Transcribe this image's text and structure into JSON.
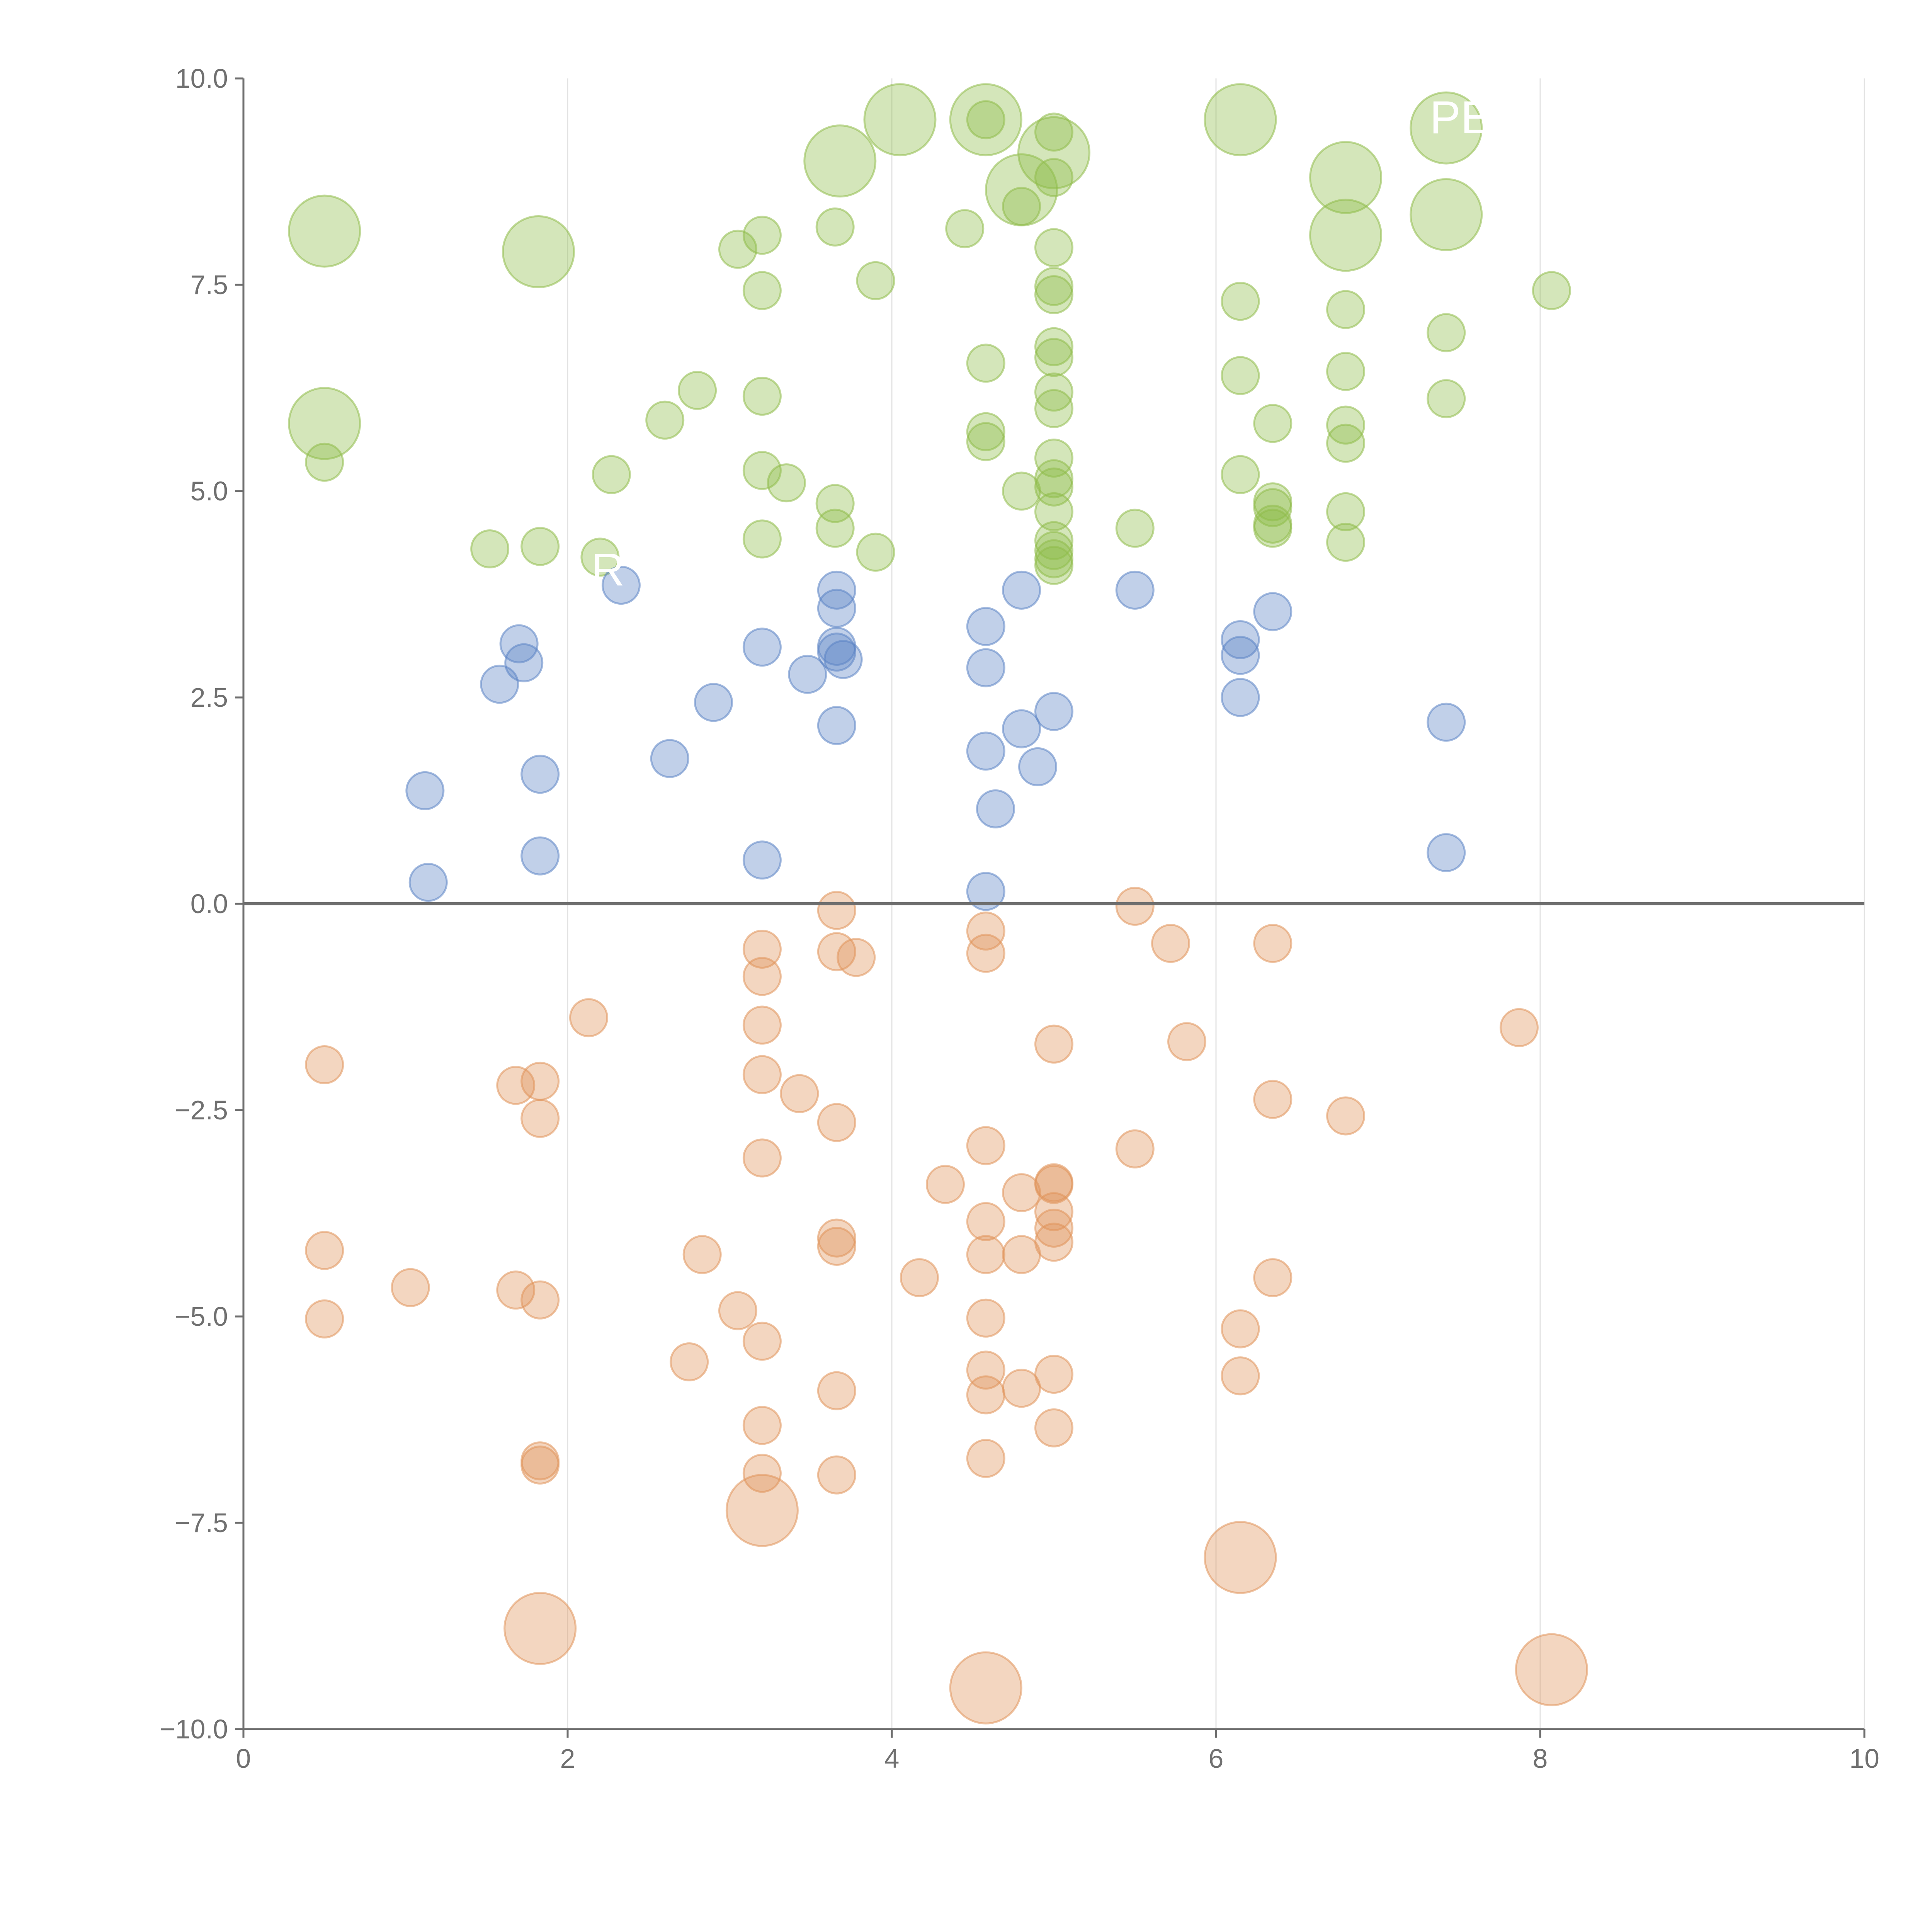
{
  "chart_data": {
    "type": "scatter",
    "xlim": [
      0,
      10
    ],
    "ylim": [
      -10,
      10
    ],
    "x_ticks": [
      0,
      2,
      4,
      6,
      8,
      10
    ],
    "x_tick_labels": [
      "0",
      "2",
      "4",
      "6",
      "8",
      "10"
    ],
    "y_ticks": [
      10,
      7.5,
      5,
      2.5,
      0,
      -2.5,
      -5,
      -7.5,
      -10
    ],
    "y_tick_labels": [
      "10.0",
      "7.5",
      "5.0",
      "2.5",
      "0.0",
      "−2.5",
      "−5.0",
      "−7.5",
      "−10.0"
    ],
    "grid": "vertical lines at x ticks",
    "reference_line_y": 0,
    "colors": {
      "green": "#8fbc4a",
      "blue": "#5b84c4",
      "orange": "#e0945a"
    },
    "series": [
      {
        "color": "green",
        "points": [
          [
            0.5,
            8.15,
            "large"
          ],
          [
            1.82,
            7.9,
            "large"
          ],
          [
            0.5,
            5.82,
            "large"
          ],
          [
            0.5,
            5.35
          ],
          [
            1.52,
            4.3
          ],
          [
            1.83,
            4.33
          ],
          [
            2.2,
            4.2
          ],
          [
            2.27,
            5.2
          ],
          [
            2.6,
            5.86
          ],
          [
            2.8,
            6.22
          ],
          [
            3.05,
            7.93
          ],
          [
            3.2,
            8.1
          ],
          [
            3.2,
            7.43
          ],
          [
            3.2,
            6.15
          ],
          [
            3.2,
            5.25
          ],
          [
            3.2,
            4.42
          ],
          [
            3.35,
            5.1
          ],
          [
            3.65,
            8.2
          ],
          [
            3.65,
            4.85
          ],
          [
            3.65,
            4.55
          ],
          [
            3.68,
            9.0,
            "large"
          ],
          [
            3.9,
            7.55
          ],
          [
            3.9,
            4.26
          ],
          [
            4.05,
            9.5,
            "large"
          ],
          [
            4.45,
            8.18
          ],
          [
            4.58,
            9.5,
            "large"
          ],
          [
            4.58,
            9.5
          ],
          [
            4.58,
            6.55
          ],
          [
            4.58,
            5.72
          ],
          [
            4.58,
            5.6
          ],
          [
            4.8,
            5.0
          ],
          [
            4.8,
            8.65,
            "large"
          ],
          [
            4.8,
            8.45
          ],
          [
            5.0,
            9.1,
            "large"
          ],
          [
            5.0,
            9.35
          ],
          [
            5.0,
            8.8
          ],
          [
            5.0,
            7.95
          ],
          [
            5.0,
            7.48
          ],
          [
            5.0,
            7.38
          ],
          [
            5.0,
            6.75
          ],
          [
            5.0,
            6.62
          ],
          [
            5.0,
            6.2
          ],
          [
            5.0,
            6.0
          ],
          [
            5.0,
            5.4
          ],
          [
            5.0,
            5.15
          ],
          [
            5.0,
            5.05
          ],
          [
            5.0,
            4.75
          ],
          [
            5.0,
            4.4
          ],
          [
            5.0,
            4.28
          ],
          [
            5.0,
            4.18
          ],
          [
            5.0,
            4.1
          ],
          [
            5.5,
            4.55
          ],
          [
            6.15,
            9.5,
            "large"
          ],
          [
            6.15,
            7.3
          ],
          [
            6.15,
            6.4
          ],
          [
            6.15,
            5.2
          ],
          [
            6.35,
            5.82
          ],
          [
            6.35,
            4.87
          ],
          [
            6.35,
            4.8
          ],
          [
            6.35,
            4.6
          ],
          [
            6.35,
            4.55
          ],
          [
            6.8,
            8.8,
            "large"
          ],
          [
            6.8,
            8.1,
            "large"
          ],
          [
            6.8,
            7.2
          ],
          [
            6.8,
            6.45
          ],
          [
            6.8,
            5.8
          ],
          [
            6.8,
            5.58
          ],
          [
            6.8,
            4.75
          ],
          [
            6.8,
            4.38
          ],
          [
            7.42,
            9.4,
            "large"
          ],
          [
            7.42,
            8.35,
            "large"
          ],
          [
            7.42,
            6.92
          ],
          [
            7.42,
            6.12
          ],
          [
            8.07,
            7.43
          ]
        ]
      },
      {
        "color": "blue",
        "points": [
          [
            1.12,
            1.37
          ],
          [
            1.14,
            0.26
          ],
          [
            1.58,
            2.66
          ],
          [
            1.7,
            3.15
          ],
          [
            1.73,
            2.92
          ],
          [
            1.83,
            1.57
          ],
          [
            1.83,
            0.58
          ],
          [
            2.33,
            3.86
          ],
          [
            2.63,
            1.76
          ],
          [
            2.9,
            2.44
          ],
          [
            3.2,
            3.11
          ],
          [
            3.2,
            0.53
          ],
          [
            3.48,
            2.78
          ],
          [
            3.66,
            3.8
          ],
          [
            3.66,
            3.58
          ],
          [
            3.66,
            3.12
          ],
          [
            3.66,
            3.05
          ],
          [
            3.7,
            2.96
          ],
          [
            3.66,
            2.16
          ],
          [
            4.58,
            3.36
          ],
          [
            4.58,
            2.86
          ],
          [
            4.58,
            1.85
          ],
          [
            4.64,
            1.15
          ],
          [
            4.58,
            0.15
          ],
          [
            4.8,
            3.8
          ],
          [
            4.8,
            2.12
          ],
          [
            4.9,
            1.66
          ],
          [
            5.0,
            2.33
          ],
          [
            5.5,
            3.8
          ],
          [
            6.15,
            3.2
          ],
          [
            6.15,
            3.01
          ],
          [
            6.15,
            2.5
          ],
          [
            6.35,
            3.54
          ],
          [
            7.42,
            2.2
          ],
          [
            7.42,
            0.62
          ]
        ]
      },
      {
        "color": "orange",
        "points": [
          [
            0.5,
            -1.95
          ],
          [
            0.5,
            -4.2
          ],
          [
            0.5,
            -5.03
          ],
          [
            1.03,
            -4.65
          ],
          [
            1.68,
            -2.2
          ],
          [
            1.83,
            -2.15
          ],
          [
            1.83,
            -2.6
          ],
          [
            1.68,
            -4.68
          ],
          [
            1.83,
            -4.8
          ],
          [
            1.83,
            -6.75
          ],
          [
            1.83,
            -6.8
          ],
          [
            1.83,
            -8.78,
            "large"
          ],
          [
            2.13,
            -1.38
          ],
          [
            2.75,
            -5.55
          ],
          [
            2.83,
            -4.25
          ],
          [
            3.05,
            -4.93
          ],
          [
            3.2,
            -0.55
          ],
          [
            3.2,
            -0.88
          ],
          [
            3.2,
            -1.47
          ],
          [
            3.2,
            -2.07
          ],
          [
            3.2,
            -3.08
          ],
          [
            3.2,
            -5.3
          ],
          [
            3.2,
            -6.32
          ],
          [
            3.2,
            -6.9
          ],
          [
            3.2,
            -7.35,
            "large"
          ],
          [
            3.43,
            -2.3
          ],
          [
            3.66,
            -0.08
          ],
          [
            3.66,
            -0.58
          ],
          [
            3.78,
            -0.65
          ],
          [
            3.66,
            -2.65
          ],
          [
            3.66,
            -4.05
          ],
          [
            3.66,
            -4.15
          ],
          [
            3.66,
            -5.9
          ],
          [
            3.66,
            -6.92
          ],
          [
            4.17,
            -4.53
          ],
          [
            4.33,
            -3.4
          ],
          [
            4.58,
            -0.33
          ],
          [
            4.58,
            -0.6
          ],
          [
            4.58,
            -2.93
          ],
          [
            4.58,
            -3.85
          ],
          [
            4.58,
            -4.25
          ],
          [
            4.58,
            -5.02
          ],
          [
            4.58,
            -5.65
          ],
          [
            4.58,
            -5.95
          ],
          [
            4.58,
            -6.72
          ],
          [
            4.58,
            -9.5,
            "large"
          ],
          [
            4.8,
            -3.5
          ],
          [
            4.8,
            -4.25
          ],
          [
            4.8,
            -5.87
          ],
          [
            5.0,
            -1.7
          ],
          [
            5.0,
            -3.38
          ],
          [
            5.0,
            -3.4
          ],
          [
            5.0,
            -3.73
          ],
          [
            5.0,
            -3.93
          ],
          [
            5.0,
            -4.1
          ],
          [
            5.0,
            -5.7
          ],
          [
            5.0,
            -6.35
          ],
          [
            5.5,
            -0.03
          ],
          [
            5.5,
            -2.97
          ],
          [
            5.72,
            -0.48
          ],
          [
            5.82,
            -1.67
          ],
          [
            6.15,
            -5.15
          ],
          [
            6.15,
            -5.72
          ],
          [
            6.15,
            -7.92,
            "large"
          ],
          [
            6.35,
            -0.48
          ],
          [
            6.35,
            -2.37
          ],
          [
            6.35,
            -4.53
          ],
          [
            6.8,
            -2.57
          ],
          [
            7.87,
            -1.5
          ],
          [
            8.07,
            -9.28,
            "large"
          ]
        ]
      }
    ],
    "labels": [
      "R",
      "PE"
    ]
  }
}
